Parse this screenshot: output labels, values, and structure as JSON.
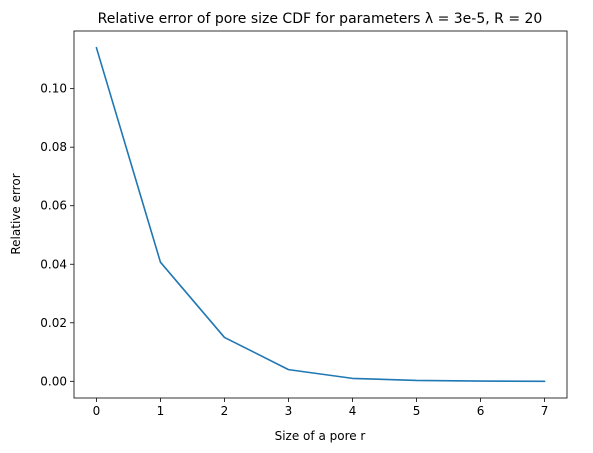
{
  "chart_data": {
    "type": "line",
    "title": "Relative error of pore size CDF for parameters λ = 3e-5, R = 20",
    "xlabel": "Size of a pore r",
    "ylabel": "Relative error",
    "x": [
      0,
      1,
      2,
      3,
      4,
      5,
      6,
      7
    ],
    "series": [
      {
        "values": [
          0.114,
          0.0407,
          0.015,
          0.004,
          0.001,
          0.0003,
          0.0001,
          0.0
        ],
        "color": "#1f77b4"
      }
    ],
    "xlim": [
      -0.35,
      7.35
    ],
    "ylim": [
      -0.0057,
      0.1197
    ],
    "xticks": [
      0,
      1,
      2,
      3,
      4,
      5,
      6,
      7
    ],
    "xtick_labels": [
      "0",
      "1",
      "2",
      "3",
      "4",
      "5",
      "6",
      "7"
    ],
    "yticks": [
      0.0,
      0.02,
      0.04,
      0.06,
      0.08,
      0.1
    ],
    "ytick_labels": [
      "0.00",
      "0.02",
      "0.04",
      "0.06",
      "0.08",
      "0.10"
    ],
    "grid": false,
    "legend": "none"
  }
}
